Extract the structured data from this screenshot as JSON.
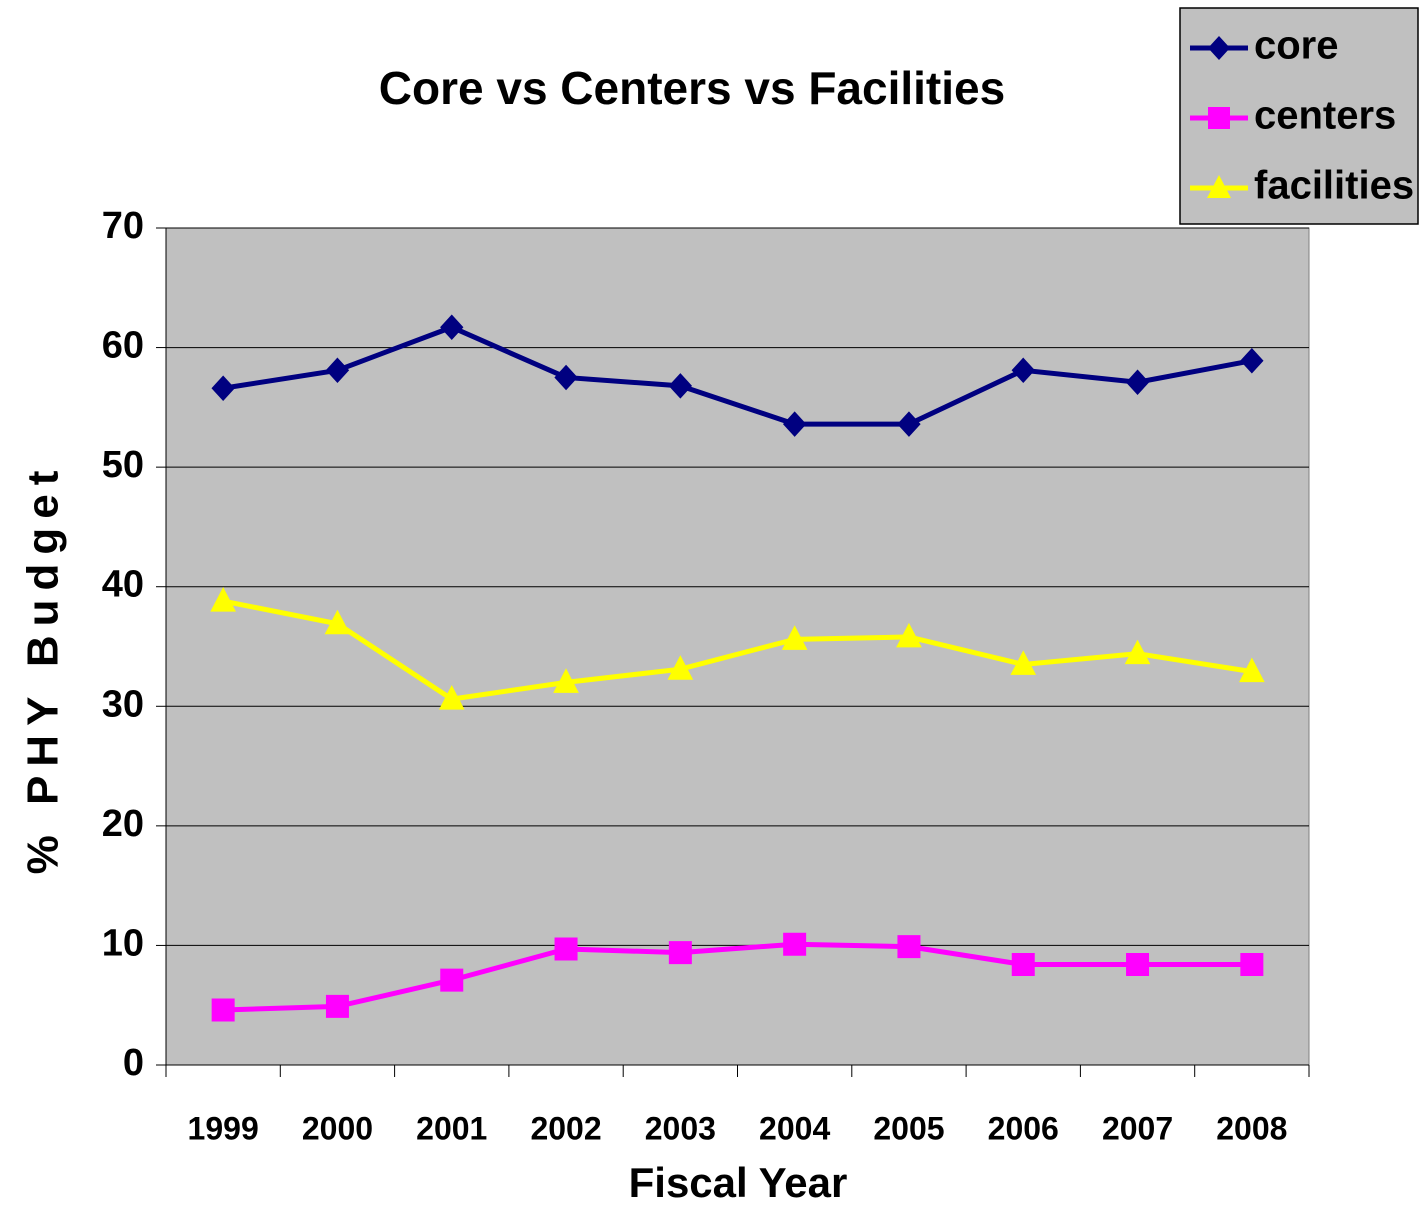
{
  "chart_data": {
    "type": "line",
    "title": "Core vs Centers vs Facilities",
    "x_label": "Fiscal Year",
    "y_label": "% PHY Budget",
    "categories": [
      "1999",
      "2000",
      "2001",
      "2002",
      "2003",
      "2004",
      "2005",
      "2006",
      "2007",
      "2008"
    ],
    "series": [
      {
        "name": "core",
        "color": "#000080",
        "marker": "diamond",
        "values": [
          56.6,
          58.1,
          61.7,
          57.5,
          56.8,
          53.6,
          53.6,
          58.1,
          57.1,
          58.9
        ]
      },
      {
        "name": "centers",
        "color": "#ff00ff",
        "marker": "square",
        "values": [
          4.6,
          4.9,
          7.1,
          9.7,
          9.4,
          10.1,
          9.9,
          8.4,
          8.4,
          8.4
        ]
      },
      {
        "name": "facilities",
        "color": "#ffff00",
        "marker": "triangle",
        "values": [
          38.8,
          36.9,
          30.6,
          32.0,
          33.1,
          35.6,
          35.8,
          33.5,
          34.4,
          32.9
        ]
      }
    ],
    "ylim": [
      0,
      70
    ],
    "yticks": [
      0,
      10,
      20,
      30,
      40,
      50,
      60,
      70
    ],
    "grid": true,
    "legend": "top-right",
    "plot_background": "#c0c0c0"
  }
}
